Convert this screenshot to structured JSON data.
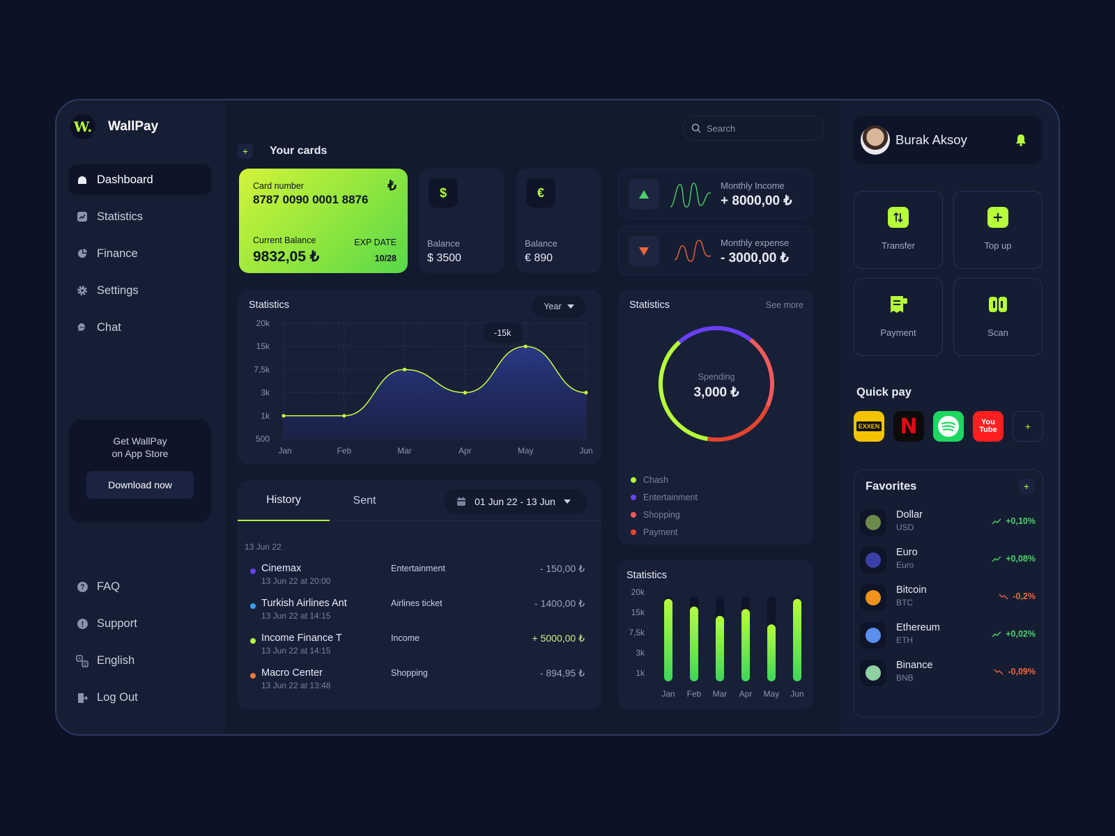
{
  "brand": {
    "logo": "W.",
    "name": "WallPay"
  },
  "nav": [
    {
      "label": "Dashboard",
      "icon": "home-icon"
    },
    {
      "label": "Statistics",
      "icon": "chart-icon"
    },
    {
      "label": "Finance",
      "icon": "pie-icon"
    },
    {
      "label": "Settings",
      "icon": "gear-icon"
    },
    {
      "label": "Chat",
      "icon": "chat-icon"
    }
  ],
  "promo": {
    "text": "Get WallPay\non App Store",
    "button": "Download now"
  },
  "bottom_nav": [
    {
      "label": "FAQ",
      "icon": "question-icon"
    },
    {
      "label": "Support",
      "icon": "support-icon"
    },
    {
      "label": "English",
      "icon": "language-icon"
    },
    {
      "label": "Log Out",
      "icon": "logout-icon"
    }
  ],
  "search": {
    "placeholder": "Search"
  },
  "cards": {
    "title": "Your cards",
    "add": "+",
    "main": {
      "number_label": "Card number",
      "number": "8787 0090 0001 8876",
      "currency": "₺",
      "balance_label": "Current Balance",
      "balance": "9832,05 ₺",
      "exp_label": "EXP DATE",
      "exp": "10/28"
    },
    "usd": {
      "symbol": "$",
      "label": "Balance",
      "value": "$ 3500"
    },
    "eur": {
      "symbol": "€",
      "label": "Balance",
      "value": "€ 890"
    }
  },
  "income": {
    "label": "Monthly Income",
    "value": "+ 8000,00 ₺"
  },
  "expense": {
    "label": "Monthly expense",
    "value": "- 3000,00 ₺"
  },
  "line_stats": {
    "title": "Statistics",
    "period": "Year",
    "tooltip": "-15k",
    "chart_data": {
      "type": "area",
      "categories": [
        "Jan",
        "Feb",
        "Mar",
        "Apr",
        "May",
        "Jun"
      ],
      "y_ticks": [
        "20k",
        "15k",
        "7,5k",
        "3k",
        "1k",
        "500"
      ],
      "values": [
        1000,
        1000,
        7500,
        3000,
        15000,
        3000
      ]
    }
  },
  "donut": {
    "title": "Statistics",
    "link": "See more",
    "center_label": "Spending",
    "center_value": "3,000 ₺",
    "chart_data": {
      "type": "pie",
      "categories": [
        "Chash",
        "Entertainment",
        "Shopping",
        "Payment"
      ],
      "values": [
        36,
        22,
        21,
        21
      ],
      "colors": [
        "#b6ff3a",
        "#6a3ff5",
        "#f05b5b",
        "#e5442f"
      ]
    }
  },
  "history": {
    "tabs": [
      "History",
      "Sent"
    ],
    "date_range": "01 Jun 22 - 13 Jun",
    "date_heading": "13 Jun 22",
    "rows": [
      {
        "name": "Cinemax",
        "time": "13 Jun 22 at 20:00",
        "category": "Entertainment",
        "amount": "- 150,00 ₺",
        "color": "#6a3ff5"
      },
      {
        "name": "Turkish Airlines Ant",
        "time": "13 Jun 22 at 14:15",
        "category": "Airlines ticket",
        "amount": "- 1400,00 ₺",
        "color": "#3b9cf0"
      },
      {
        "name": "Income Finance T",
        "time": "13 Jun 22 at 14:15",
        "category": "Income",
        "amount": "+ 5000,00 ₺",
        "color": "#b6ff3a"
      },
      {
        "name": "Macro Center",
        "time": "13 Jun 22 at 13:48",
        "category": "Shopping",
        "amount": "- 894,95 ₺",
        "color": "#f0793b"
      }
    ]
  },
  "bar_stats": {
    "title": "Statistics",
    "chart_data": {
      "type": "bar",
      "categories": [
        "Jan",
        "Feb",
        "Mar",
        "Apr",
        "May",
        "Jun"
      ],
      "y_ticks": [
        "20k",
        "15k",
        "7,5k",
        "3k",
        "1k"
      ],
      "values": [
        0.97,
        0.88,
        0.77,
        0.85,
        0.67,
        0.97
      ]
    }
  },
  "profile": {
    "name": "Burak Aksoy"
  },
  "actions": [
    {
      "label": "Transfer",
      "icon": "transfer-icon"
    },
    {
      "label": "Top up",
      "icon": "plus-icon"
    },
    {
      "label": "Payment",
      "icon": "receipt-icon"
    },
    {
      "label": "Scan",
      "icon": "scan-icon"
    }
  ],
  "quick_pay": {
    "title": "Quick pay",
    "apps": [
      {
        "name": "EXXEN",
        "color": "#f5c400"
      },
      {
        "name": "N",
        "color": "#0b0b0b"
      },
      {
        "name": "Spotify",
        "color": "#1ed760"
      },
      {
        "name": "You Tube",
        "color": "#ff1f1f"
      }
    ],
    "add": "+"
  },
  "favorites": {
    "title": "Favorites",
    "add": "+",
    "items": [
      {
        "name": "Dollar",
        "code": "USD",
        "change": "+0,10%",
        "up": true,
        "color": "#6b8a4a"
      },
      {
        "name": "Euro",
        "code": "Euro",
        "change": "+0,08%",
        "up": true,
        "color": "#3a3fa8"
      },
      {
        "name": "Bitcoin",
        "code": "BTC",
        "change": "-0,2%",
        "up": false,
        "color": "#f0931a"
      },
      {
        "name": "Ethereum",
        "code": "ETH",
        "change": "+0,02%",
        "up": true,
        "color": "#5a8ff0"
      },
      {
        "name": "Binance",
        "code": "BNB",
        "change": "-0,09%",
        "up": false,
        "color": "#8fd1a0"
      }
    ]
  }
}
